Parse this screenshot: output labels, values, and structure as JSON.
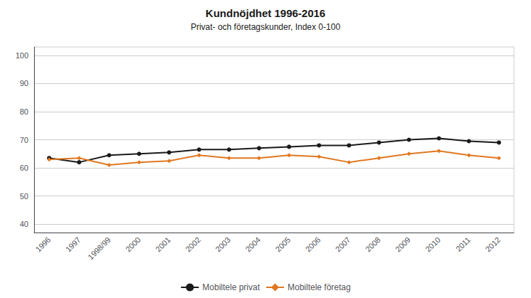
{
  "chart_data": {
    "type": "line",
    "title": "Kundnöjdhet 1996-2016",
    "subtitle": "Privat- och företagskunder, Index 0-100",
    "categories": [
      "1996",
      "1997",
      "1998/99",
      "2000",
      "2001",
      "2002",
      "2003",
      "2004",
      "2005",
      "2006",
      "2007",
      "2008",
      "2009",
      "2010",
      "2011",
      "2012"
    ],
    "series": [
      {
        "name": "Mobiltele privat",
        "color": "#1a1a1a",
        "marker": "circle",
        "values": [
          63.5,
          62.0,
          64.5,
          65.0,
          65.5,
          66.5,
          66.5,
          67.0,
          67.5,
          68.0,
          68.0,
          69.0,
          70.0,
          70.5,
          69.5,
          69.0
        ]
      },
      {
        "name": "Mobiltele företag",
        "color": "#e07820",
        "marker": "diamond",
        "values": [
          63.0,
          63.5,
          61.0,
          62.0,
          62.5,
          64.5,
          63.5,
          63.5,
          64.5,
          64.0,
          62.0,
          63.5,
          65.0,
          66.0,
          64.5,
          63.5
        ]
      }
    ],
    "ylim": [
      37,
      103
    ],
    "yticks": [
      40,
      50,
      60,
      70,
      80,
      90,
      100
    ],
    "grid": true,
    "legend": "bottom"
  }
}
